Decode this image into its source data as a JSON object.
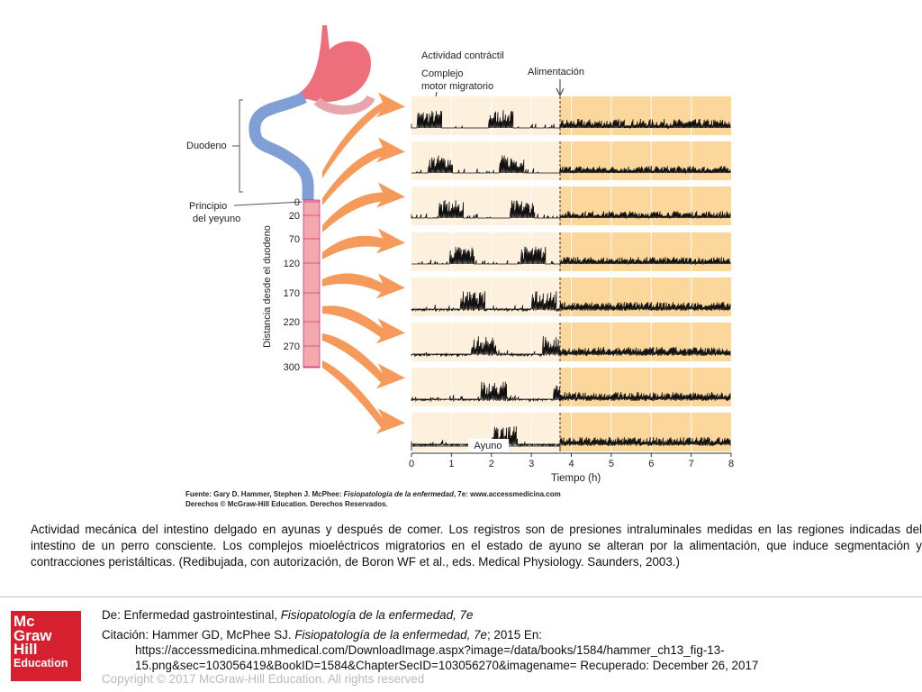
{
  "figure": {
    "contractile_label": "Actividad contráctil",
    "mmc_label": [
      "Complejo",
      "motor migratorio"
    ],
    "feeding_label": "Alimentación",
    "duodenum_label": "Duodeno",
    "jejunum_label": [
      "Principio",
      "del yeyuno"
    ],
    "distance_axis_label": "Distancia desde el duodeno",
    "distances": [
      0,
      20,
      70,
      120,
      170,
      220,
      270,
      300
    ],
    "fasting_label": "Ayuno",
    "time_ticks": [
      0,
      1,
      2,
      3,
      4,
      5,
      6,
      7,
      8
    ],
    "time_axis_label": "Tiempo (h)",
    "source": {
      "prefix": "Fuente: Gary D. Hammer, Stephen J. McPhee: ",
      "book": "Fisiopatología de la enfermedad",
      "suffix": ", 7e: www.accessmedicina.com",
      "rights": "Derechos © McGraw-Hill Education. Derechos Reservados."
    }
  },
  "caption": "Actividad mecánica del intestino delgado en ayunas y después de comer. Los registros son de presiones intraluminales medidas en las regiones indicadas del intestino de un perro consciente. Los complejos mioeléctricos migratorios en el estado de ayuno se alteran por la alimentación, que induce segmentación y contracciones peristálticas. (Redibujada, con autorización, de Boron WF et al., eds. Medical Physiology. Saunders, 2003.)",
  "footer": {
    "logo": [
      "Mc",
      "Graw",
      "Hill",
      "Education"
    ],
    "from": {
      "prefix": "De: Enfermedad gastrointestinal, ",
      "book": "Fisiopatología de la enfermedad, 7e"
    },
    "citation": {
      "prefix": "Citación: Hammer GD, McPhee SJ. ",
      "book": "Fisiopatología de la enfermedad, 7e",
      "suffix": "; 2015 En:"
    },
    "url_lines": [
      "https://accessmedicina.mhmedical.com/DownloadImage.aspx?image=/data/books/1584/hammer_ch13_fig-13-",
      "15.png&sec=103056419&BookID=1584&ChapterSecID=103056270&imagename= Recuperado: December 26, 2017"
    ],
    "copyright": "Copyright © 2017 McGraw-Hill Education. All rights reserved"
  }
}
